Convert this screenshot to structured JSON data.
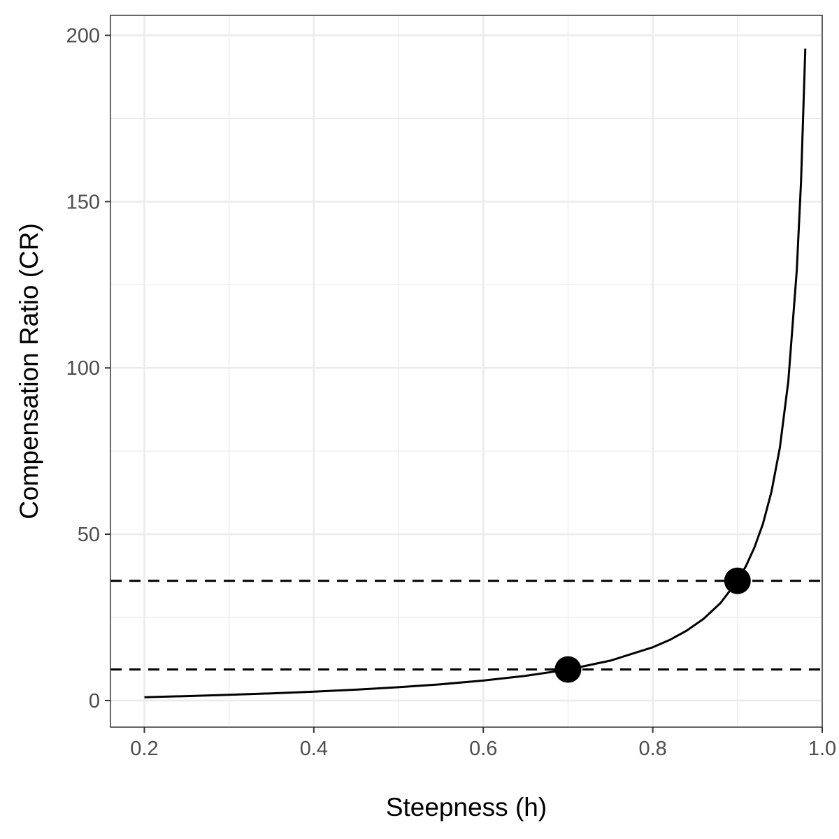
{
  "chart_data": {
    "type": "line",
    "title": "",
    "xlabel": "Steepness (h)",
    "ylabel": "Compensation Ratio (CR)",
    "xlim": [
      0.16,
      1.0
    ],
    "ylim": [
      -8,
      206
    ],
    "x_ticks": [
      0.2,
      0.4,
      0.6,
      0.8,
      1.0
    ],
    "x_tick_labels": [
      "0.2",
      "0.4",
      "0.6",
      "0.8",
      "1.0"
    ],
    "y_ticks": [
      0,
      50,
      100,
      150,
      200
    ],
    "y_tick_labels": [
      "0",
      "50",
      "100",
      "150",
      "200"
    ],
    "x_minor_ticks": [
      0.3,
      0.5,
      0.7,
      0.9
    ],
    "y_minor_ticks": [
      25,
      75,
      125,
      175
    ],
    "grid": true,
    "series": [
      {
        "style": "solid",
        "color": "#000000",
        "x": [
          0.2,
          0.25,
          0.3,
          0.35,
          0.4,
          0.45,
          0.5,
          0.55,
          0.6,
          0.65,
          0.7,
          0.75,
          0.8,
          0.82,
          0.84,
          0.86,
          0.88,
          0.9,
          0.91,
          0.92,
          0.93,
          0.94,
          0.95,
          0.96,
          0.97,
          0.975,
          0.98
        ],
        "y": [
          1.0,
          1.33,
          1.71,
          2.15,
          2.67,
          3.27,
          4.0,
          4.89,
          6.0,
          7.43,
          9.33,
          12.0,
          16.0,
          18.22,
          21.0,
          24.57,
          29.33,
          36.0,
          40.44,
          46.0,
          53.14,
          62.67,
          76.0,
          96.0,
          129.33,
          156.0,
          196.0
        ]
      }
    ],
    "points": [
      {
        "x": 0.7,
        "y": 9.33
      },
      {
        "x": 0.9,
        "y": 36.0
      }
    ],
    "reference_lines": [
      {
        "orientation": "horizontal",
        "y": 9.33,
        "style": "dashed"
      },
      {
        "orientation": "horizontal",
        "y": 36.0,
        "style": "dashed"
      }
    ]
  }
}
